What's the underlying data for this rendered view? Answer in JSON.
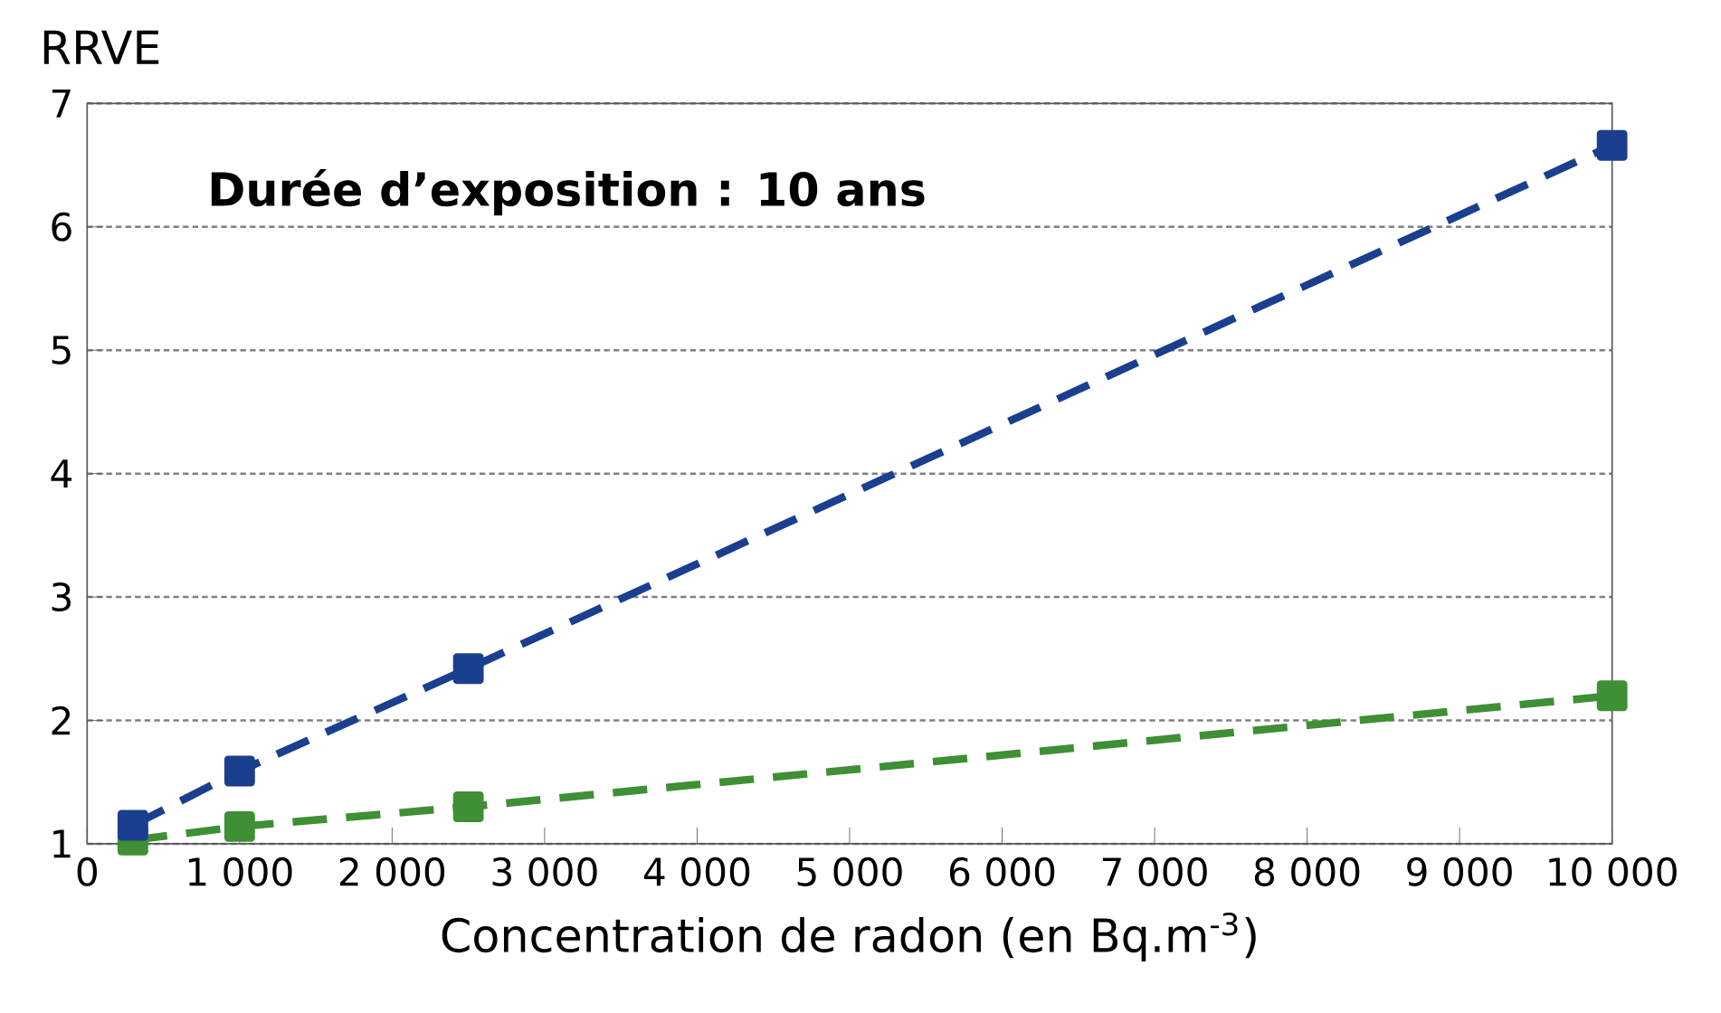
{
  "chart_data": {
    "type": "line",
    "ylabel": "RRVE",
    "xlabel": "Concentration de radon (en Bq.m$^{-3}$)",
    "annotations": [
      "Durée d’exposition : 10 ans"
    ],
    "xlim": [
      0,
      10000
    ],
    "xticks": [
      0,
      {
        "value": 1000,
        "label": "1 000"
      },
      {
        "value": 2000,
        "label": "2 000"
      },
      {
        "value": 3000,
        "label": "3 000"
      },
      {
        "value": 4000,
        "label": "4 000"
      },
      {
        "value": 5000,
        "label": "5 000"
      },
      {
        "value": 6000,
        "label": "6 000"
      },
      {
        "value": 7000,
        "label": "7 000"
      },
      {
        "value": 8000,
        "label": "8 000"
      },
      {
        "value": 9000,
        "label": "9 000"
      },
      {
        "value": 10000,
        "label": "10 000"
      }
    ],
    "ylim": [
      1,
      7
    ],
    "yticks": [
      1,
      2,
      3,
      4,
      5,
      6,
      7
    ],
    "grid": "y",
    "marker": "square",
    "line_style": "dashed",
    "x": [
      300,
      1000,
      2500,
      10000
    ],
    "series": [
      {
        "color": "#1b3f8f",
        "values": [
          1.15,
          1.59,
          2.42,
          6.66
        ]
      },
      {
        "color": "#3f8f35",
        "values": [
          1.03,
          1.14,
          1.3,
          2.2
        ]
      }
    ]
  }
}
